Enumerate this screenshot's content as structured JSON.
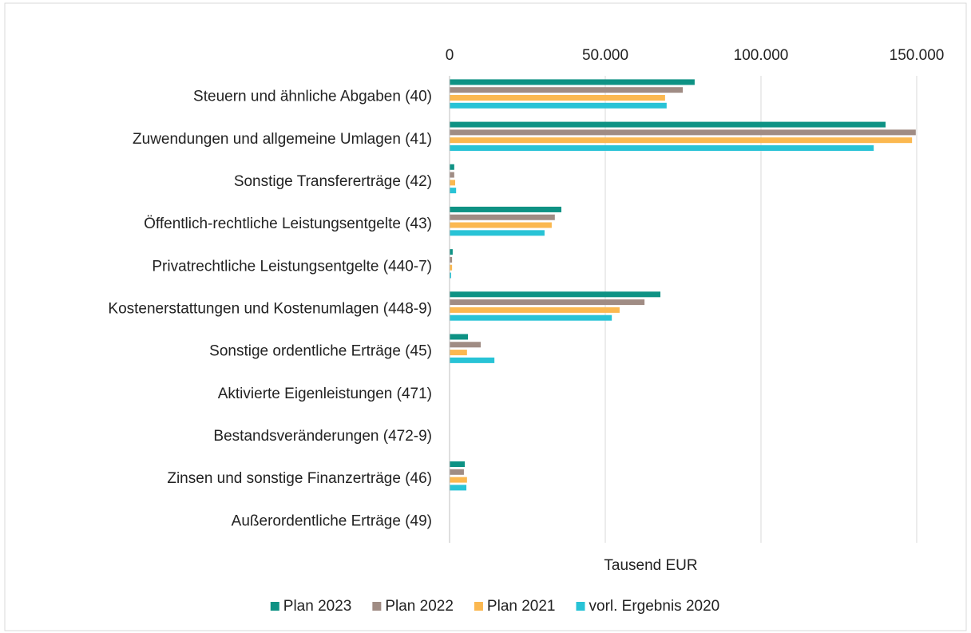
{
  "chart_data": {
    "type": "hbar",
    "categories": [
      "Steuern und ähnliche Abgaben (40)",
      "Zuwendungen und allgemeine Umlagen (41)",
      "Sonstige Transfererträge (42)",
      "Öffentlich-rechtliche Leistungsentgelte (43)",
      "Privatrechtliche Leistungsentgelte (440-7)",
      "Kostenerstattungen und Kostenumlagen (448-9)",
      "Sonstige ordentliche Erträge (45)",
      "Aktivierte Eigenleistungen (471)",
      "Bestandsveränderungen (472-9)",
      "Zinsen und sonstige Finanzerträge (46)",
      "Außerordentliche Erträge (49)"
    ],
    "series": [
      {
        "name": "Plan 2023",
        "color": "#0e9284",
        "values": [
          78700,
          140000,
          1500,
          35900,
          1000,
          67700,
          5900,
          0,
          0,
          4900,
          0
        ]
      },
      {
        "name": "Plan 2022",
        "color": "#a08c84",
        "values": [
          74900,
          149700,
          1500,
          33800,
          800,
          62600,
          10000,
          0,
          0,
          4600,
          0
        ]
      },
      {
        "name": "Plan 2021",
        "color": "#fbb850",
        "values": [
          69200,
          148500,
          1800,
          32800,
          800,
          54600,
          5600,
          0,
          0,
          5600,
          0
        ]
      },
      {
        "name": "vorl. Ergebnis 2020",
        "color": "#28c3d6",
        "values": [
          69700,
          136200,
          2100,
          30500,
          500,
          52100,
          14400,
          0,
          0,
          5400,
          0
        ]
      }
    ],
    "xlabel": "Tausend EUR",
    "xlim": [
      0,
      155000
    ],
    "xticks": [
      0,
      {
        "value": 50000,
        "label": "50.000"
      },
      {
        "value": 100000,
        "label": "100.000"
      },
      {
        "value": 150000,
        "label": "150.000"
      }
    ],
    "grid": true,
    "legend": "bottom"
  }
}
